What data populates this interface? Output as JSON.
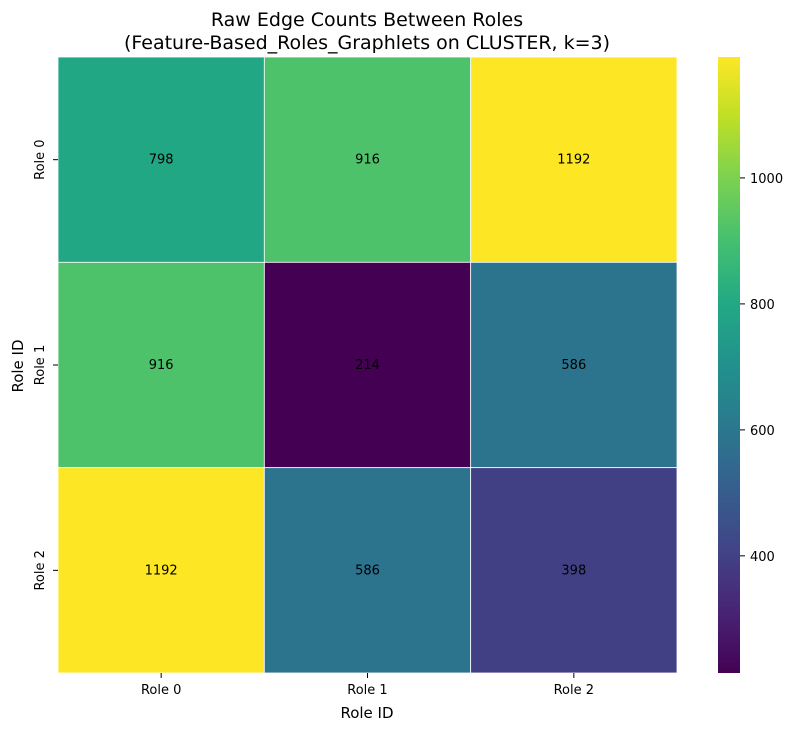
{
  "chart_data": {
    "type": "heatmap",
    "title": "Raw Edge Counts Between Roles",
    "subtitle": "(Feature-Based_Roles_Graphlets on CLUSTER, k=3)",
    "xlabel": "Role ID",
    "ylabel": "Role ID",
    "x_categories": [
      "Role 0",
      "Role 1",
      "Role 2"
    ],
    "y_categories": [
      "Role 0",
      "Role 1",
      "Role 2"
    ],
    "values": [
      [
        798,
        916,
        1192
      ],
      [
        916,
        214,
        586
      ],
      [
        1192,
        586,
        398
      ]
    ],
    "colormap": "viridis",
    "vmin": 214,
    "vmax": 1192,
    "colorbar_ticks": [
      400,
      600,
      800,
      1000
    ],
    "grid": true,
    "cell_border_color": "#ffffff"
  }
}
